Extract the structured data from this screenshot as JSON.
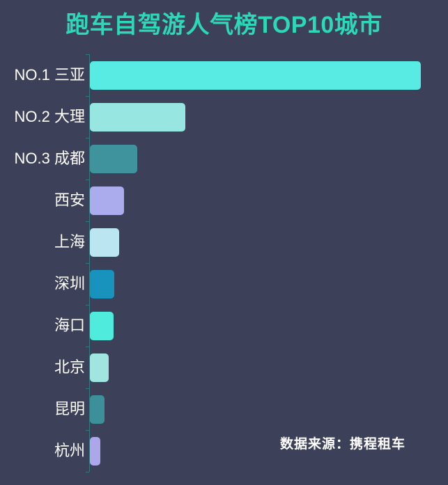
{
  "page": {
    "background_color": "#3D4059"
  },
  "header": {
    "title": "跑车自驾游人气榜TOP10城市",
    "title_color": "#2BD9B6"
  },
  "footer": {
    "source_text": "数据来源：携程租车",
    "color": "#FFFFFF"
  },
  "chart_data": {
    "type": "bar",
    "orientation": "horizontal",
    "title": "跑车自驾游人气榜TOP10城市",
    "categories": [
      "NO.1 三亚",
      "NO.2 大理",
      "NO.3 成都",
      "西安",
      "上海",
      "深圳",
      "海口",
      "北京",
      "昆明",
      "杭州"
    ],
    "values": [
      100,
      28.8,
      14.3,
      10.3,
      8.8,
      7.4,
      7.2,
      5.7,
      4.4,
      3.2
    ],
    "value_unit": "relative popularity, % of top bar (no numeric labels shown in chart)",
    "bar_colors": [
      "#58EBE3",
      "#98E6E2",
      "#3E939D",
      "#AAACEE",
      "#BCE5F2",
      "#1893BD",
      "#4FEBDC",
      "#A0E5E0",
      "#3D909A",
      "#ABA7EA"
    ],
    "xlabel": "",
    "ylabel": "",
    "grid": false,
    "legend": false,
    "value_axis_visible": false,
    "category_axis_line_color": "#2E7C80",
    "category_label_color": "#FFFFFF",
    "background_color": "#3D4059",
    "annotation": "数据来源：携程租车"
  }
}
